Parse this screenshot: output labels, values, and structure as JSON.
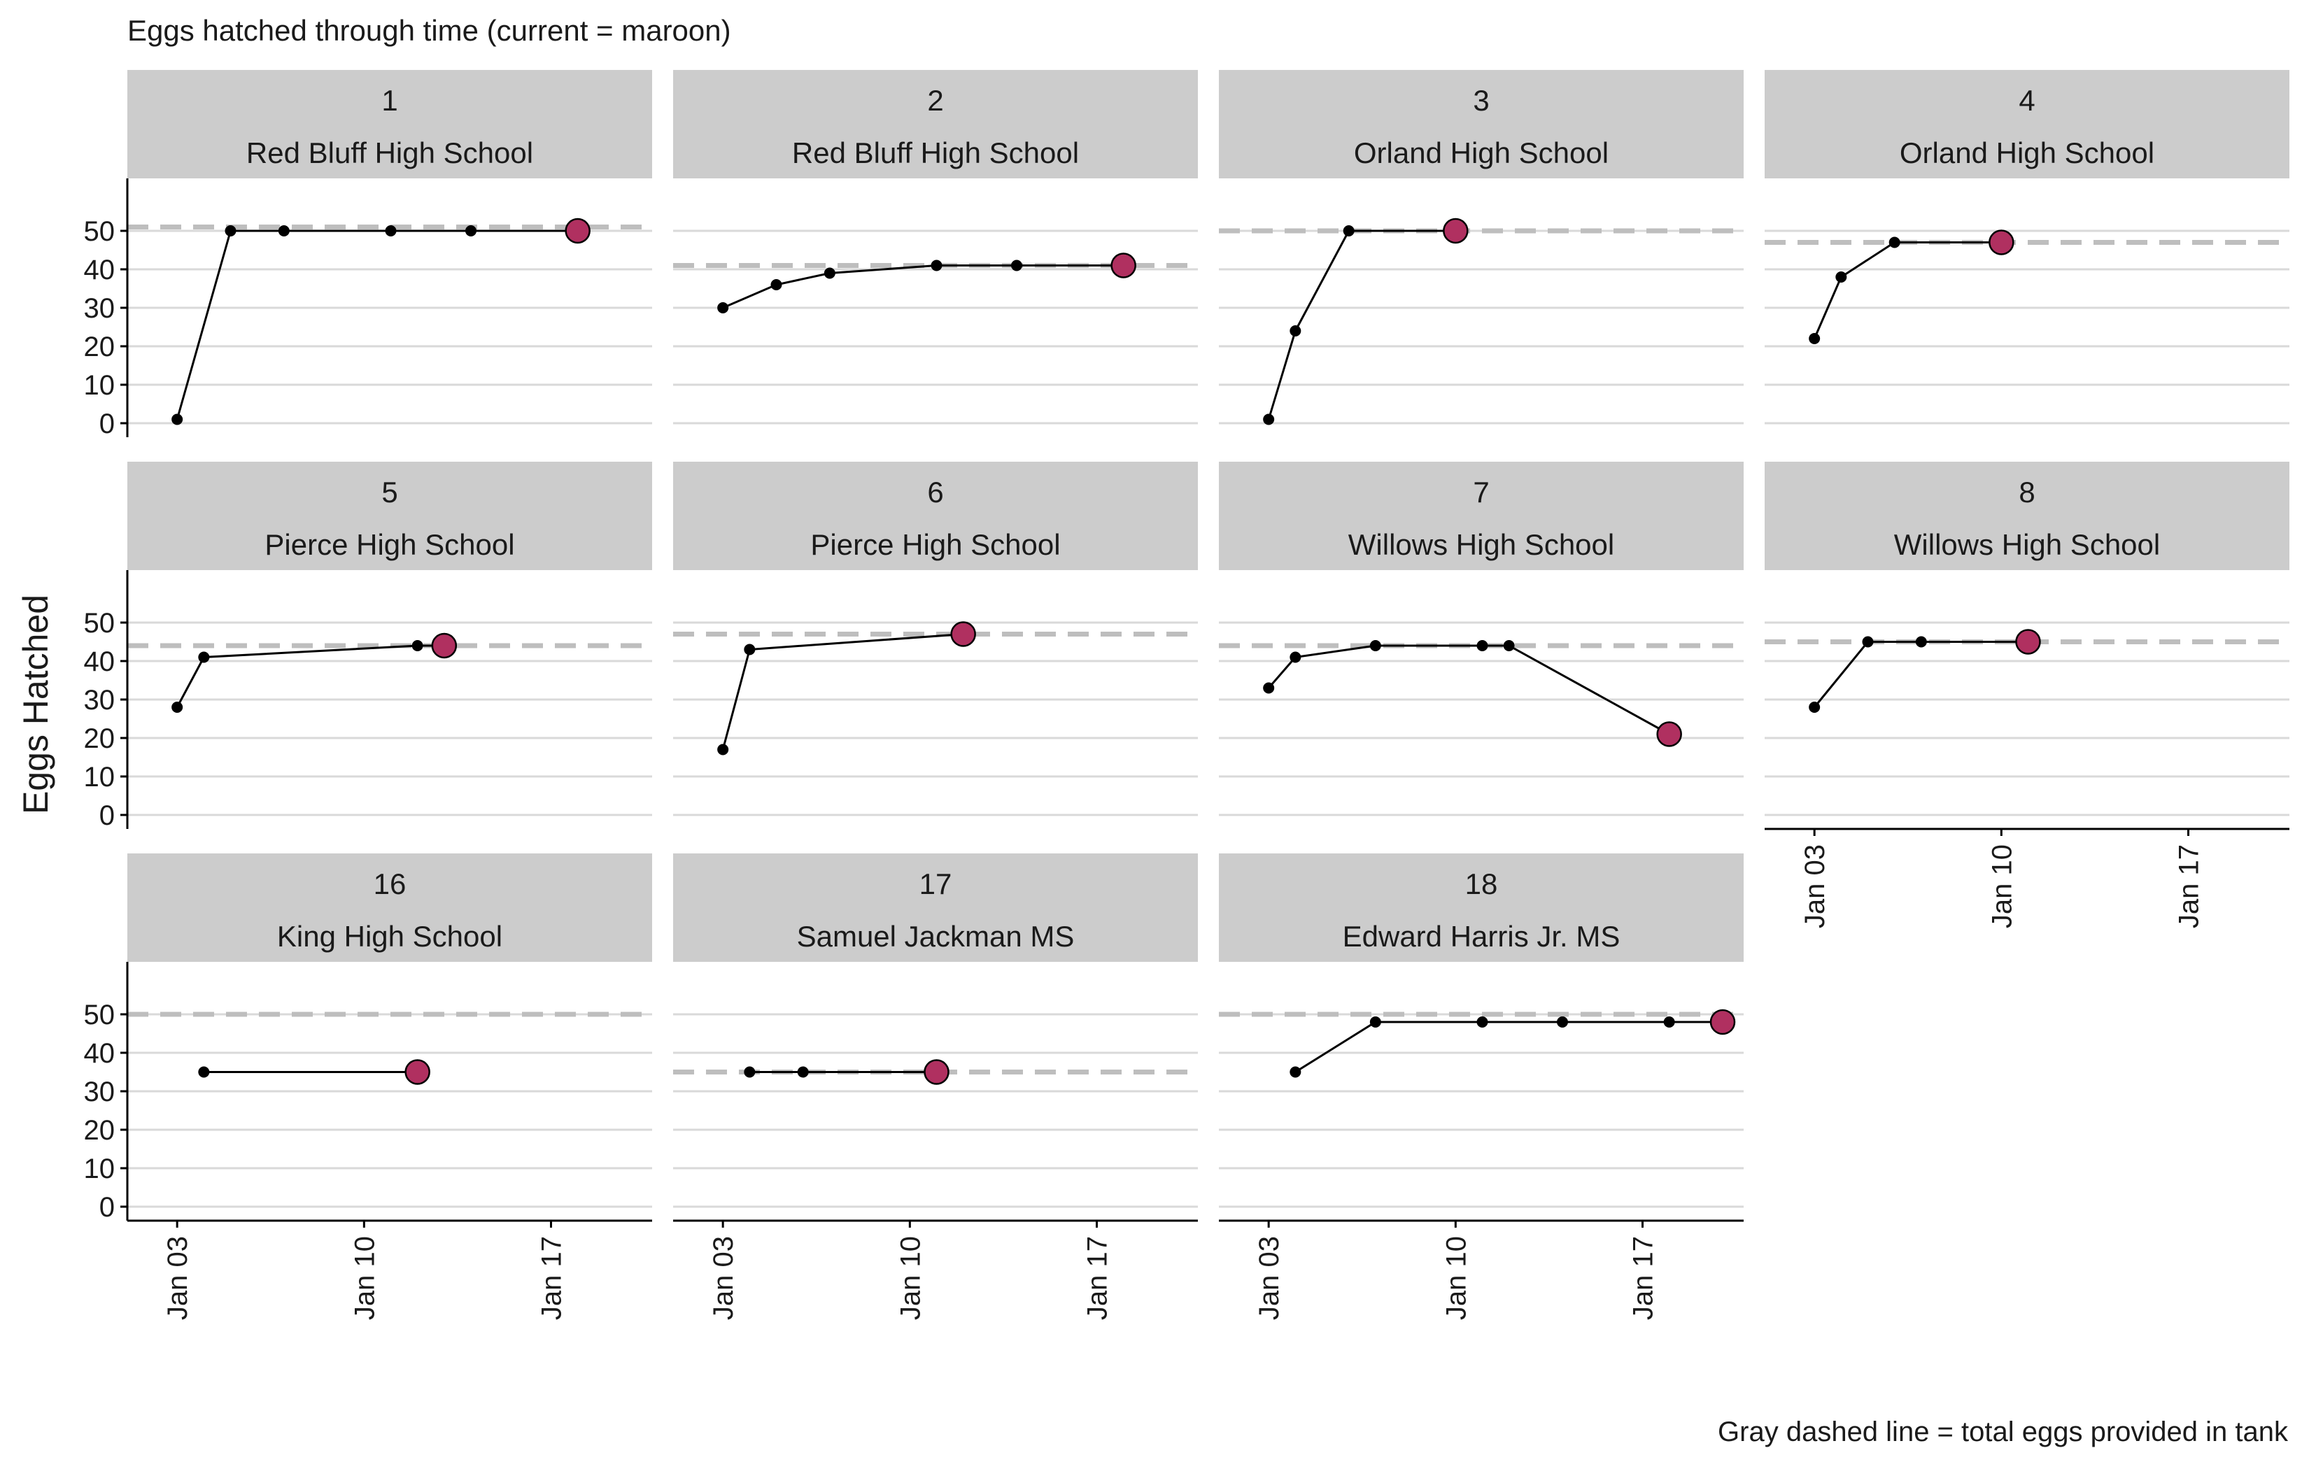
{
  "chart_data": {
    "type": "line",
    "title": "Eggs hatched through time (current = maroon)",
    "caption": "Gray dashed line = total eggs provided in tank",
    "ylabel": "Eggs Hatched",
    "xlabel": "",
    "ylim": [
      0,
      50
    ],
    "yticks": [
      0,
      10,
      20,
      30,
      40,
      50
    ],
    "xlim": [
      "2024-01-02",
      "2024-01-20"
    ],
    "xticks": [
      {
        "date": "2024-01-03",
        "label": "Jan 03"
      },
      {
        "date": "2024-01-10",
        "label": "Jan 10"
      },
      {
        "date": "2024-01-17",
        "label": "Jan 17"
      }
    ],
    "grid": "horizontal",
    "colors": {
      "line": "#000000",
      "current": "#b03060",
      "total_line": "#bebebe",
      "strip": "#cccccc",
      "grid": "#d9d9d9"
    },
    "panels": [
      {
        "id": "1",
        "school": "Red Bluff High School",
        "total_eggs": 51,
        "points": [
          {
            "date": "2024-01-03",
            "value": 1
          },
          {
            "date": "2024-01-05",
            "value": 50
          },
          {
            "date": "2024-01-07",
            "value": 50
          },
          {
            "date": "2024-01-11",
            "value": 50
          },
          {
            "date": "2024-01-14",
            "value": 50
          },
          {
            "date": "2024-01-18",
            "value": 50
          }
        ]
      },
      {
        "id": "2",
        "school": "Red Bluff High School",
        "total_eggs": 41,
        "points": [
          {
            "date": "2024-01-03",
            "value": 30
          },
          {
            "date": "2024-01-05",
            "value": 36
          },
          {
            "date": "2024-01-07",
            "value": 39
          },
          {
            "date": "2024-01-11",
            "value": 41
          },
          {
            "date": "2024-01-14",
            "value": 41
          },
          {
            "date": "2024-01-18",
            "value": 41
          }
        ]
      },
      {
        "id": "3",
        "school": "Orland High School",
        "total_eggs": 50,
        "points": [
          {
            "date": "2024-01-03",
            "value": 1
          },
          {
            "date": "2024-01-04",
            "value": 24
          },
          {
            "date": "2024-01-06",
            "value": 50
          },
          {
            "date": "2024-01-10",
            "value": 50
          }
        ]
      },
      {
        "id": "4",
        "school": "Orland High School",
        "total_eggs": 47,
        "points": [
          {
            "date": "2024-01-03",
            "value": 22
          },
          {
            "date": "2024-01-04",
            "value": 38
          },
          {
            "date": "2024-01-06",
            "value": 47
          },
          {
            "date": "2024-01-10",
            "value": 47
          }
        ]
      },
      {
        "id": "5",
        "school": "Pierce High School",
        "total_eggs": 44,
        "points": [
          {
            "date": "2024-01-03",
            "value": 28
          },
          {
            "date": "2024-01-04",
            "value": 41
          },
          {
            "date": "2024-01-12",
            "value": 44
          },
          {
            "date": "2024-01-13",
            "value": 44
          }
        ]
      },
      {
        "id": "6",
        "school": "Pierce High School",
        "total_eggs": 47,
        "points": [
          {
            "date": "2024-01-03",
            "value": 17
          },
          {
            "date": "2024-01-04",
            "value": 43
          },
          {
            "date": "2024-01-12",
            "value": 47
          }
        ]
      },
      {
        "id": "7",
        "school": "Willows High School",
        "total_eggs": 44,
        "points": [
          {
            "date": "2024-01-03",
            "value": 33
          },
          {
            "date": "2024-01-04",
            "value": 41
          },
          {
            "date": "2024-01-07",
            "value": 44
          },
          {
            "date": "2024-01-11",
            "value": 44
          },
          {
            "date": "2024-01-12",
            "value": 44
          },
          {
            "date": "2024-01-18",
            "value": 21
          }
        ]
      },
      {
        "id": "8",
        "school": "Willows High School",
        "total_eggs": 45,
        "points": [
          {
            "date": "2024-01-03",
            "value": 28
          },
          {
            "date": "2024-01-05",
            "value": 45
          },
          {
            "date": "2024-01-07",
            "value": 45
          },
          {
            "date": "2024-01-11",
            "value": 45
          }
        ]
      },
      {
        "id": "16",
        "school": "King High School",
        "total_eggs": 50,
        "points": [
          {
            "date": "2024-01-04",
            "value": 35
          },
          {
            "date": "2024-01-12",
            "value": 35
          }
        ]
      },
      {
        "id": "17",
        "school": "Samuel Jackman MS",
        "total_eggs": 35,
        "points": [
          {
            "date": "2024-01-04",
            "value": 35
          },
          {
            "date": "2024-01-06",
            "value": 35
          },
          {
            "date": "2024-01-11",
            "value": 35
          }
        ]
      },
      {
        "id": "18",
        "school": "Edward Harris Jr. MS",
        "total_eggs": 50,
        "points": [
          {
            "date": "2024-01-04",
            "value": 35
          },
          {
            "date": "2024-01-07",
            "value": 48
          },
          {
            "date": "2024-01-11",
            "value": 48
          },
          {
            "date": "2024-01-14",
            "value": 48
          },
          {
            "date": "2024-01-18",
            "value": 48
          },
          {
            "date": "2024-01-20",
            "value": 48
          }
        ]
      }
    ]
  }
}
